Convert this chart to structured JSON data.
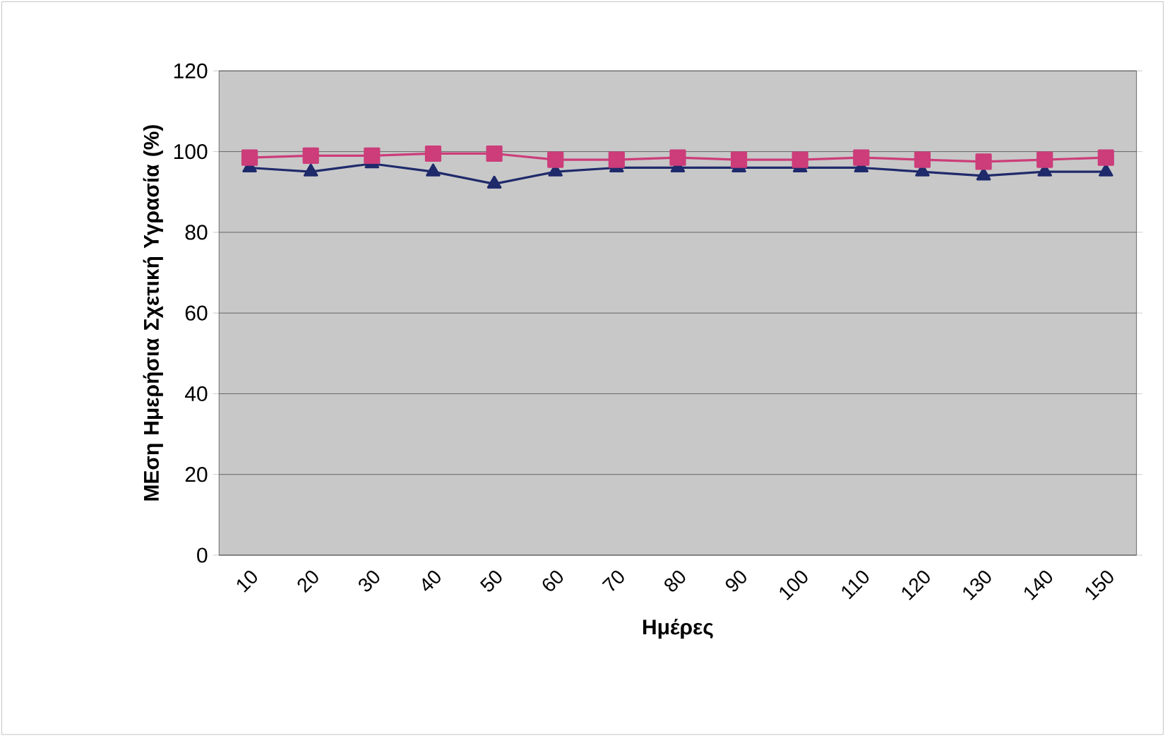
{
  "chart_data": {
    "type": "line",
    "xlabel": "Ημέρες",
    "ylabel": "ΜΕση Ημερήσια Σχετική Υγρασία (%)",
    "categories": [
      "10",
      "20",
      "30",
      "40",
      "50",
      "60",
      "70",
      "80",
      "90",
      "100",
      "110",
      "120",
      "130",
      "140",
      "150"
    ],
    "ylim": [
      0,
      120
    ],
    "yticks": [
      0,
      20,
      40,
      60,
      80,
      100,
      120
    ],
    "grid": "y",
    "series": [
      {
        "color": "#1f2a6b",
        "marker": "triangle",
        "values": [
          96,
          95,
          97,
          95,
          92,
          95,
          96,
          96,
          96,
          96,
          96,
          95,
          94,
          95,
          95
        ]
      },
      {
        "color": "#cc3d7a",
        "marker": "square",
        "values": [
          98.5,
          99,
          99,
          99.5,
          99.5,
          98,
          98,
          98.5,
          98,
          98,
          98.5,
          98,
          97.5,
          98,
          98.5
        ]
      }
    ]
  }
}
